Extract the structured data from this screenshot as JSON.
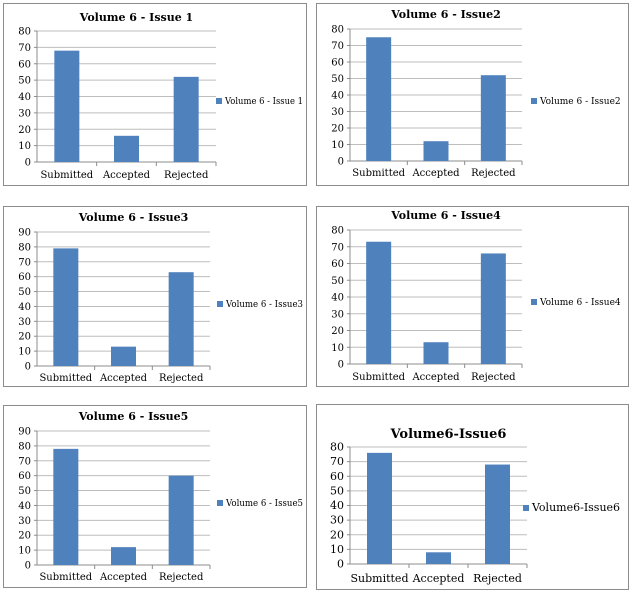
{
  "chart_data": [
    {
      "type": "bar",
      "title": "Volume 6 - Issue 1",
      "categories": [
        "Submitted",
        "Accepted",
        "Rejected"
      ],
      "series": [
        {
          "name": "Volume 6 - Issue 1",
          "values": [
            68,
            16,
            52
          ]
        }
      ],
      "ylim": [
        0,
        80
      ],
      "ytick_step": 10,
      "grid": true,
      "legend": "right",
      "color": "#4f81bd"
    },
    {
      "type": "bar",
      "title": "Volume 6 - Issue2",
      "categories": [
        "Submitted",
        "Accepted",
        "Rejected"
      ],
      "series": [
        {
          "name": "Volume 6 - Issue2",
          "values": [
            75,
            12,
            52
          ]
        }
      ],
      "ylim": [
        0,
        80
      ],
      "ytick_step": 10,
      "grid": true,
      "legend": "right",
      "color": "#4f81bd"
    },
    {
      "type": "bar",
      "title": "Volume 6 - Issue3",
      "categories": [
        "Submitted",
        "Accepted",
        "Rejected"
      ],
      "series": [
        {
          "name": "Volume 6 - Issue3",
          "values": [
            79,
            13,
            63
          ]
        }
      ],
      "ylim": [
        0,
        90
      ],
      "ytick_step": 10,
      "grid": true,
      "legend": "right",
      "color": "#4f81bd"
    },
    {
      "type": "bar",
      "title": "Volume 6 - Issue4",
      "categories": [
        "Submitted",
        "Accepted",
        "Rejected"
      ],
      "series": [
        {
          "name": "Volume 6 - Issue4",
          "values": [
            73,
            13,
            66
          ]
        }
      ],
      "ylim": [
        0,
        80
      ],
      "ytick_step": 10,
      "grid": true,
      "legend": "right",
      "color": "#4f81bd"
    },
    {
      "type": "bar",
      "title": "Volume 6 - Issue5",
      "categories": [
        "Submitted",
        "Accepted",
        "Rejected"
      ],
      "series": [
        {
          "name": "Volume 6 - Issue5",
          "values": [
            78,
            12,
            60
          ]
        }
      ],
      "ylim": [
        0,
        90
      ],
      "ytick_step": 10,
      "grid": true,
      "legend": "right",
      "color": "#4f81bd"
    },
    {
      "type": "bar",
      "title": "Volume6-Issue6",
      "categories": [
        "Submitted",
        "Accepted",
        "Rejected"
      ],
      "series": [
        {
          "name": "Volume6-Issue6",
          "values": [
            76,
            8,
            68
          ]
        }
      ],
      "ylim": [
        0,
        80
      ],
      "ytick_step": 10,
      "grid": true,
      "legend": "right",
      "color": "#4f81bd"
    }
  ]
}
